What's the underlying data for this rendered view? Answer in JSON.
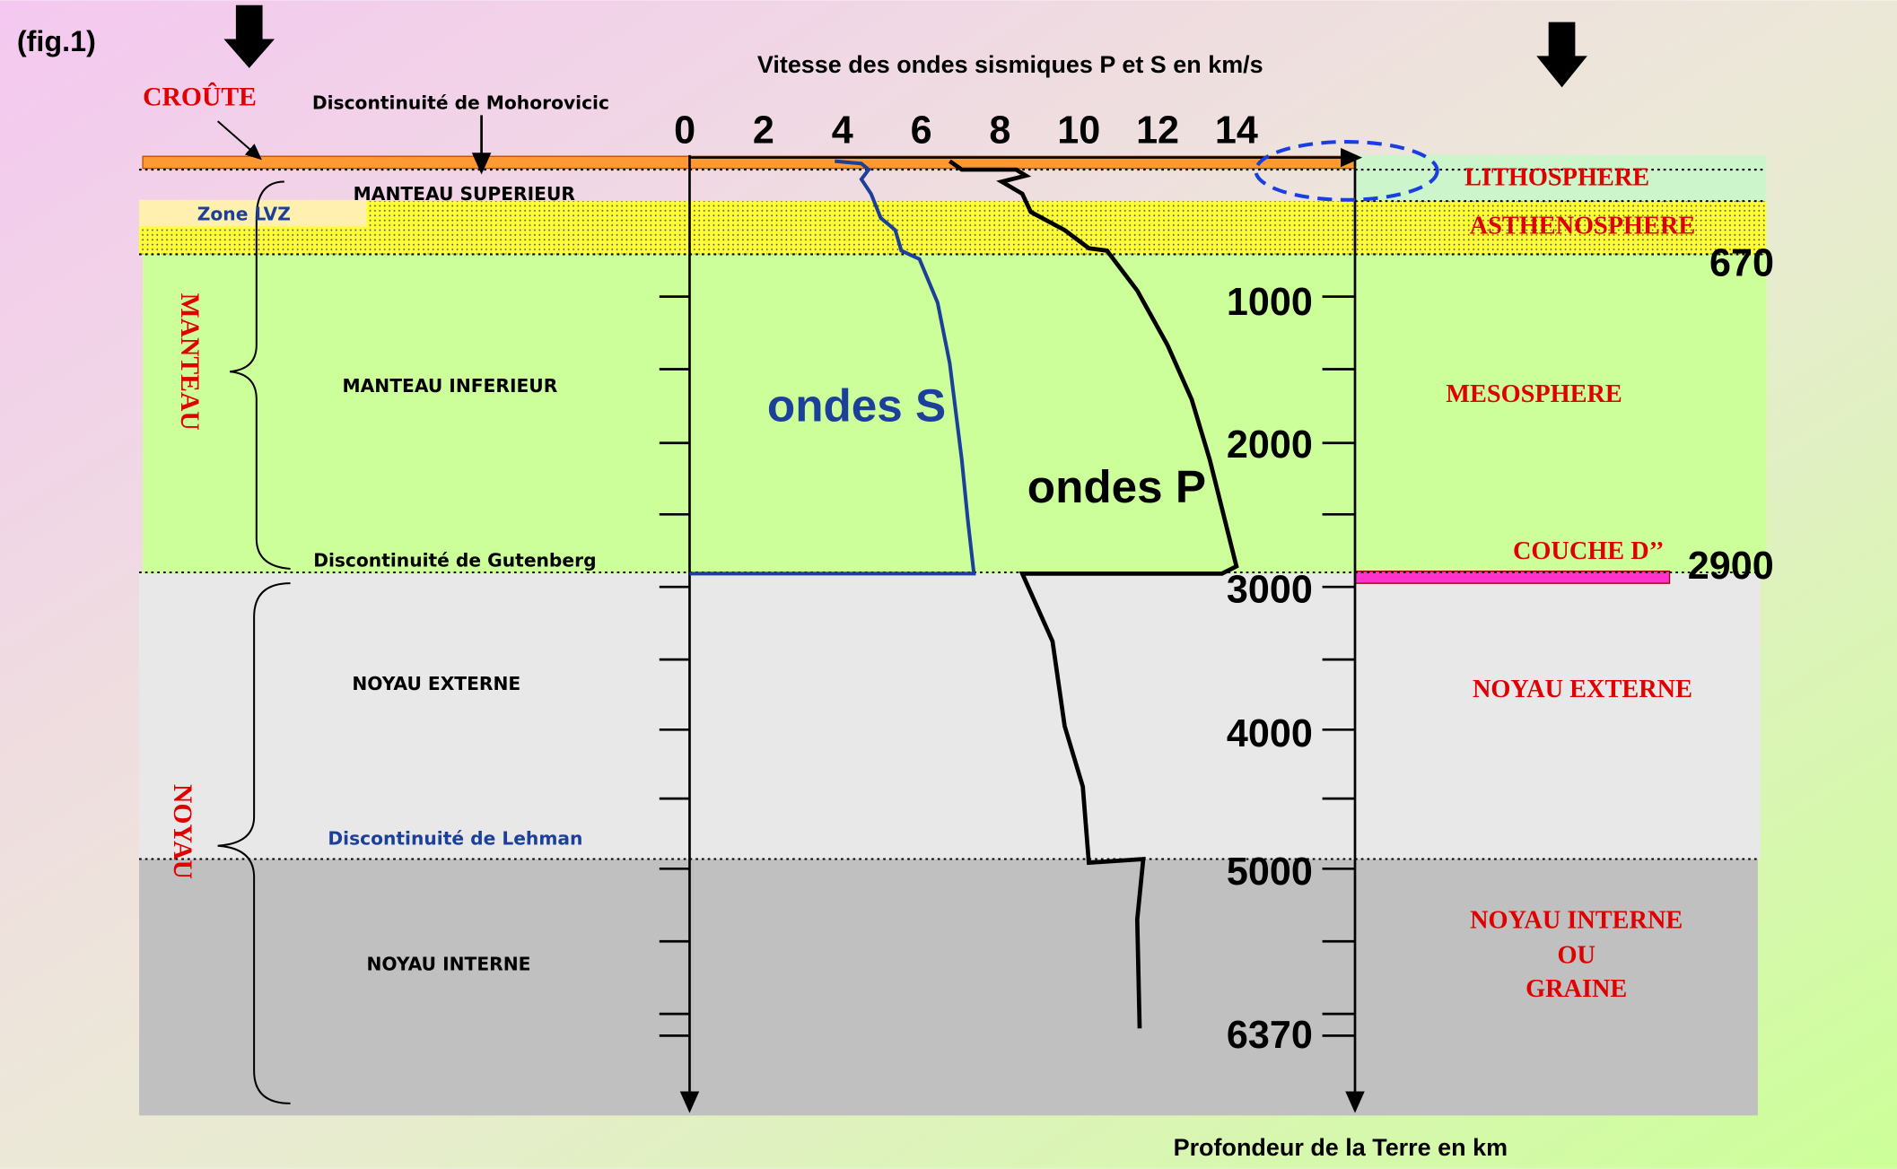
{
  "figure_label": "(fig.1)",
  "title": "Vitesse des ondes sismiques P et S en km/s",
  "depth_axis_label": "Profondeur de la Terre en km",
  "velocity_ticks": [
    0,
    2,
    4,
    6,
    8,
    10,
    12,
    14
  ],
  "depth_ticks": {
    "d670": 670,
    "d1000": 1000,
    "d2000": 2000,
    "d2900": 2900,
    "d3000": 3000,
    "d4000": 4000,
    "d5000": 5000,
    "d6370": 6370
  },
  "left": {
    "crust": "CROÛTE",
    "moho": "Discontinuité de Mohorovicic",
    "upper_mantle": "MANTEAU SUPERIEUR",
    "lvz": "Zone LVZ",
    "mantle": "MANTEAU",
    "lower_mantle": "MANTEAU INFERIEUR",
    "gutenberg": "Discontinuité de Gutenberg",
    "outer_core": "NOYAU EXTERNE",
    "core": "NOYAU",
    "lehman": "Discontinuité de Lehman",
    "inner_core": "NOYAU INTERNE"
  },
  "curves": {
    "s": "ondes S",
    "p": "ondes P"
  },
  "right": {
    "lithosphere": "LITHOSPHERE",
    "asthenosphere": "ASTHENOSPHERE",
    "mesosphere": "MESOSPHERE",
    "d_layer": "COUCHE D’’",
    "outer_core": "NOYAU EXTERNE",
    "inner_core": [
      "NOYAU INTERNE",
      "OU",
      "GRAINE"
    ]
  }
}
